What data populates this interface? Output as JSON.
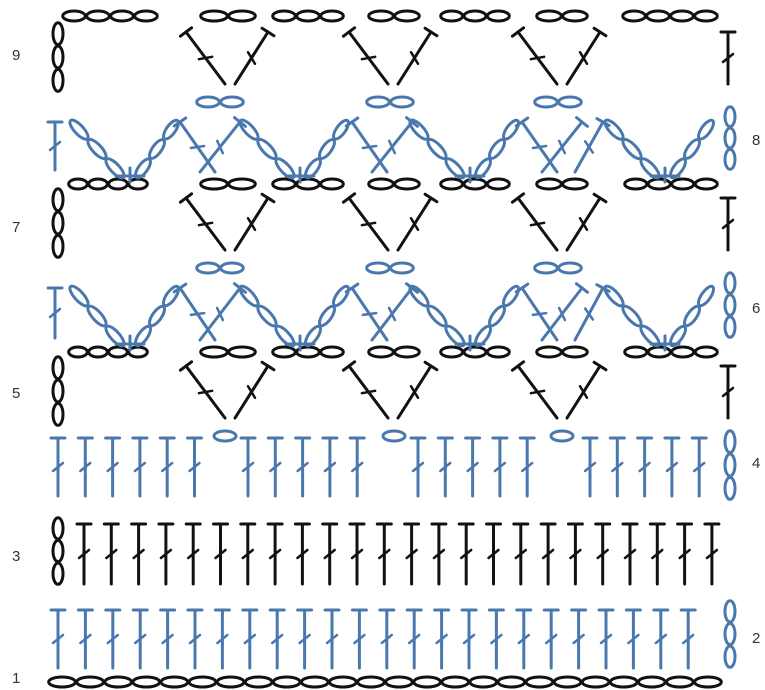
{
  "diagram": {
    "type": "crochet-stitch-chart",
    "colors": {
      "odd_rows": "#111111",
      "even_rows": "#4a78ae"
    },
    "symbols": {
      "chain": "oval-chain-icon",
      "double_crochet": "dc-stitch-icon",
      "treble_crochet": "tr-stitch-icon"
    },
    "rows": [
      {
        "label": "1",
        "side": "left",
        "color_key": "odd_rows"
      },
      {
        "label": "2",
        "side": "right",
        "color_key": "even_rows"
      },
      {
        "label": "3",
        "side": "left",
        "color_key": "odd_rows"
      },
      {
        "label": "4",
        "side": "right",
        "color_key": "even_rows"
      },
      {
        "label": "5",
        "side": "left",
        "color_key": "odd_rows"
      },
      {
        "label": "6",
        "side": "right",
        "color_key": "even_rows"
      },
      {
        "label": "7",
        "side": "left",
        "color_key": "odd_rows"
      },
      {
        "label": "8",
        "side": "right",
        "color_key": "even_rows"
      },
      {
        "label": "9",
        "side": "left",
        "color_key": "odd_rows"
      }
    ]
  }
}
